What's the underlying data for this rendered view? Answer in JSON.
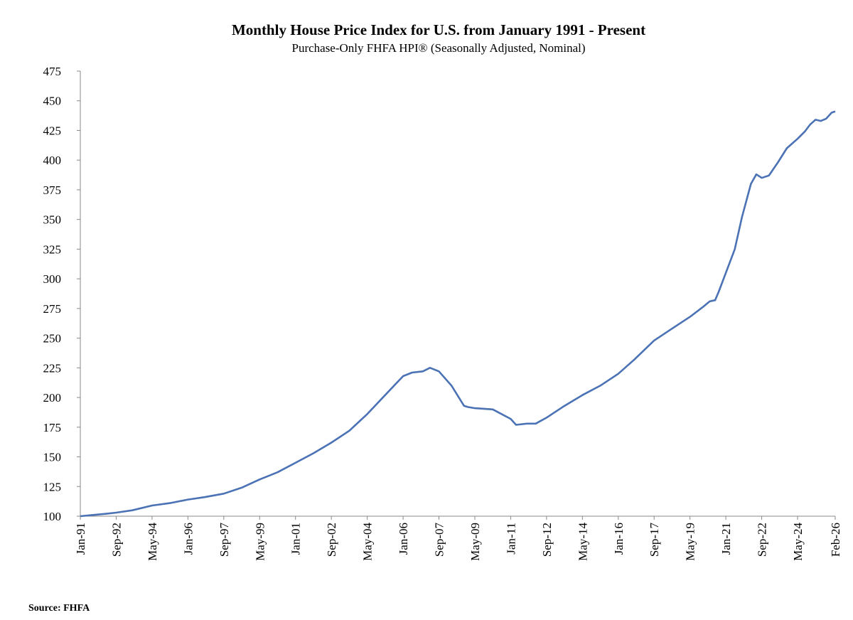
{
  "chart_data": {
    "type": "line",
    "title": "Monthly House Price Index for U.S. from January 1991 - Present",
    "subtitle": "Purchase-Only FHFA HPI® (Seasonally Adjusted, Nominal)",
    "source": "Source: FHFA",
    "ylim": [
      100,
      475
    ],
    "yticks": [
      100,
      125,
      150,
      175,
      200,
      225,
      250,
      275,
      300,
      325,
      350,
      375,
      400,
      425,
      450,
      475
    ],
    "xlim": [
      "1991-01",
      "2026-02"
    ],
    "xtick_labels": [
      "Jan-91",
      "Sep-92",
      "May-94",
      "Jan-96",
      "Sep-97",
      "May-99",
      "Jan-01",
      "Sep-02",
      "May-04",
      "Jan-06",
      "Sep-07",
      "May-09",
      "Jan-11",
      "Sep-12",
      "May-14",
      "Jan-16",
      "Sep-17",
      "May-19",
      "Jan-21",
      "Sep-22",
      "May-24",
      "Feb-26"
    ],
    "xticks": [
      "1991-01",
      "1992-09",
      "1994-05",
      "1996-01",
      "1997-09",
      "1999-05",
      "2001-01",
      "2002-09",
      "2004-05",
      "2006-01",
      "2007-09",
      "2009-05",
      "2011-01",
      "2012-09",
      "2014-05",
      "2016-01",
      "2017-09",
      "2019-05",
      "2021-01",
      "2022-09",
      "2024-05",
      "2026-02"
    ],
    "grid": false,
    "line_color": "#4a72b5",
    "series": [
      {
        "x": [
          "1991-01",
          "1991-08",
          "1992-03",
          "1992-09",
          "1993-06",
          "1994-05",
          "1995-03",
          "1996-01",
          "1996-10",
          "1997-09",
          "1998-07",
          "1999-05",
          "2000-03",
          "2001-01",
          "2001-11",
          "2002-09",
          "2003-07",
          "2004-05",
          "2005-03",
          "2006-01",
          "2006-06",
          "2006-12",
          "2007-04",
          "2007-09",
          "2008-04",
          "2008-11",
          "2009-01",
          "2009-05",
          "2010-03",
          "2011-01",
          "2011-04",
          "2011-10",
          "2012-03",
          "2012-09",
          "2013-06",
          "2014-05",
          "2015-03",
          "2016-01",
          "2016-10",
          "2017-09",
          "2018-07",
          "2019-05",
          "2019-12",
          "2020-04",
          "2020-07",
          "2020-09",
          "2021-01",
          "2021-06",
          "2021-10",
          "2022-03",
          "2022-06",
          "2022-09",
          "2023-01",
          "2023-06",
          "2023-11",
          "2024-05",
          "2024-09",
          "2024-12",
          "2025-03",
          "2025-06",
          "2025-09",
          "2025-12",
          "2026-02"
        ],
        "values": [
          100,
          101,
          102,
          103,
          105,
          109,
          111,
          114,
          116,
          119,
          124,
          131,
          137,
          145,
          153,
          162,
          172,
          186,
          202,
          218,
          221,
          222,
          225,
          222,
          210,
          193,
          192,
          191,
          190,
          182,
          177,
          178,
          178,
          183,
          192,
          202,
          210,
          220,
          232,
          248,
          258,
          268,
          276,
          281,
          282,
          289,
          305,
          325,
          352,
          380,
          388,
          385,
          387,
          398,
          410,
          418,
          424,
          430,
          434,
          433,
          435,
          440,
          441
        ]
      }
    ]
  }
}
